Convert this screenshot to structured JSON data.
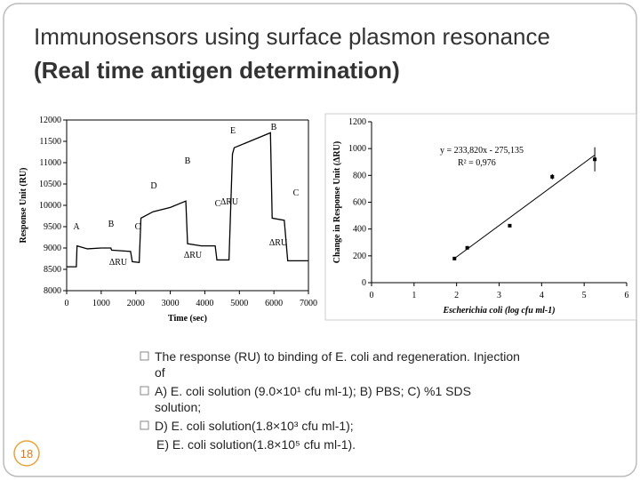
{
  "title_plain": "Immunosensors using surface plasmon resonance",
  "title_bold": "(Real time antigen determination)",
  "bullets": [
    [
      "The response (RU) to binding of E. coli and regeneration. Injection",
      "of"
    ],
    [
      "A) E. coli solution (9.0×10¹ cfu ml-1); B) PBS; C) %1 SDS",
      "solution;"
    ],
    [
      "D) E. coli solution(1.8×10³ cfu ml-1);"
    ]
  ],
  "closing_line": "E) E. coli solution(1.8×10⁵ cfu ml-1).",
  "page_number": "18",
  "chart_data": [
    {
      "type": "line",
      "xlabel": "Time (sec)",
      "ylabel": "Response Unit (RU)",
      "xlim": [
        0,
        7000
      ],
      "ylim": [
        8000,
        12000
      ],
      "xticks": [
        0,
        1000,
        2000,
        3000,
        4000,
        5000,
        6000,
        7000
      ],
      "yticks": [
        8000,
        8500,
        9000,
        9500,
        10000,
        10500,
        11000,
        11500,
        12000
      ],
      "series": [
        {
          "color": "#000000",
          "x": [
            0,
            280,
            300,
            600,
            1000,
            1280,
            1300,
            1850,
            1900,
            2100,
            2150,
            2500,
            3000,
            3450,
            3500,
            3900,
            4300,
            4350,
            4700,
            4800,
            4850,
            5300,
            5900,
            5950,
            6300,
            6400,
            7000
          ],
          "values": [
            8560,
            8560,
            9050,
            8980,
            9000,
            9000,
            8950,
            8920,
            8680,
            8660,
            9700,
            9850,
            9950,
            10100,
            9100,
            9050,
            9050,
            8720,
            8720,
            11200,
            11350,
            11500,
            11700,
            9700,
            9650,
            8700,
            8700
          ]
        }
      ],
      "annotations": [
        "A",
        "B",
        "C",
        "D",
        "B",
        "C",
        "E",
        "B",
        "C",
        "ΔRU",
        "ΔRU",
        "ΔRU",
        "ΔRU"
      ]
    },
    {
      "type": "scatter",
      "xlabel": "Escherichia coli (log cfu ml-1)",
      "ylabel": "Change in Response Unit (ΔRU)",
      "xlim": [
        0,
        6
      ],
      "ylim": [
        0,
        1200
      ],
      "xticks": [
        0,
        1,
        2,
        3,
        4,
        5,
        6
      ],
      "yticks": [
        0,
        200,
        400,
        600,
        800,
        1000,
        1200
      ],
      "series": [
        {
          "color": "#000000",
          "x": [
            1.95,
            2.25,
            3.25,
            4.25,
            5.25
          ],
          "values": [
            180,
            260,
            425,
            790,
            920
          ],
          "errors": [
            null,
            null,
            null,
            20,
            90
          ]
        }
      ],
      "fit": {
        "slope": 233.82,
        "intercept": -275.135
      },
      "annotations": [
        "y = 233,820x - 275,135",
        "R² = 0,976"
      ]
    }
  ]
}
